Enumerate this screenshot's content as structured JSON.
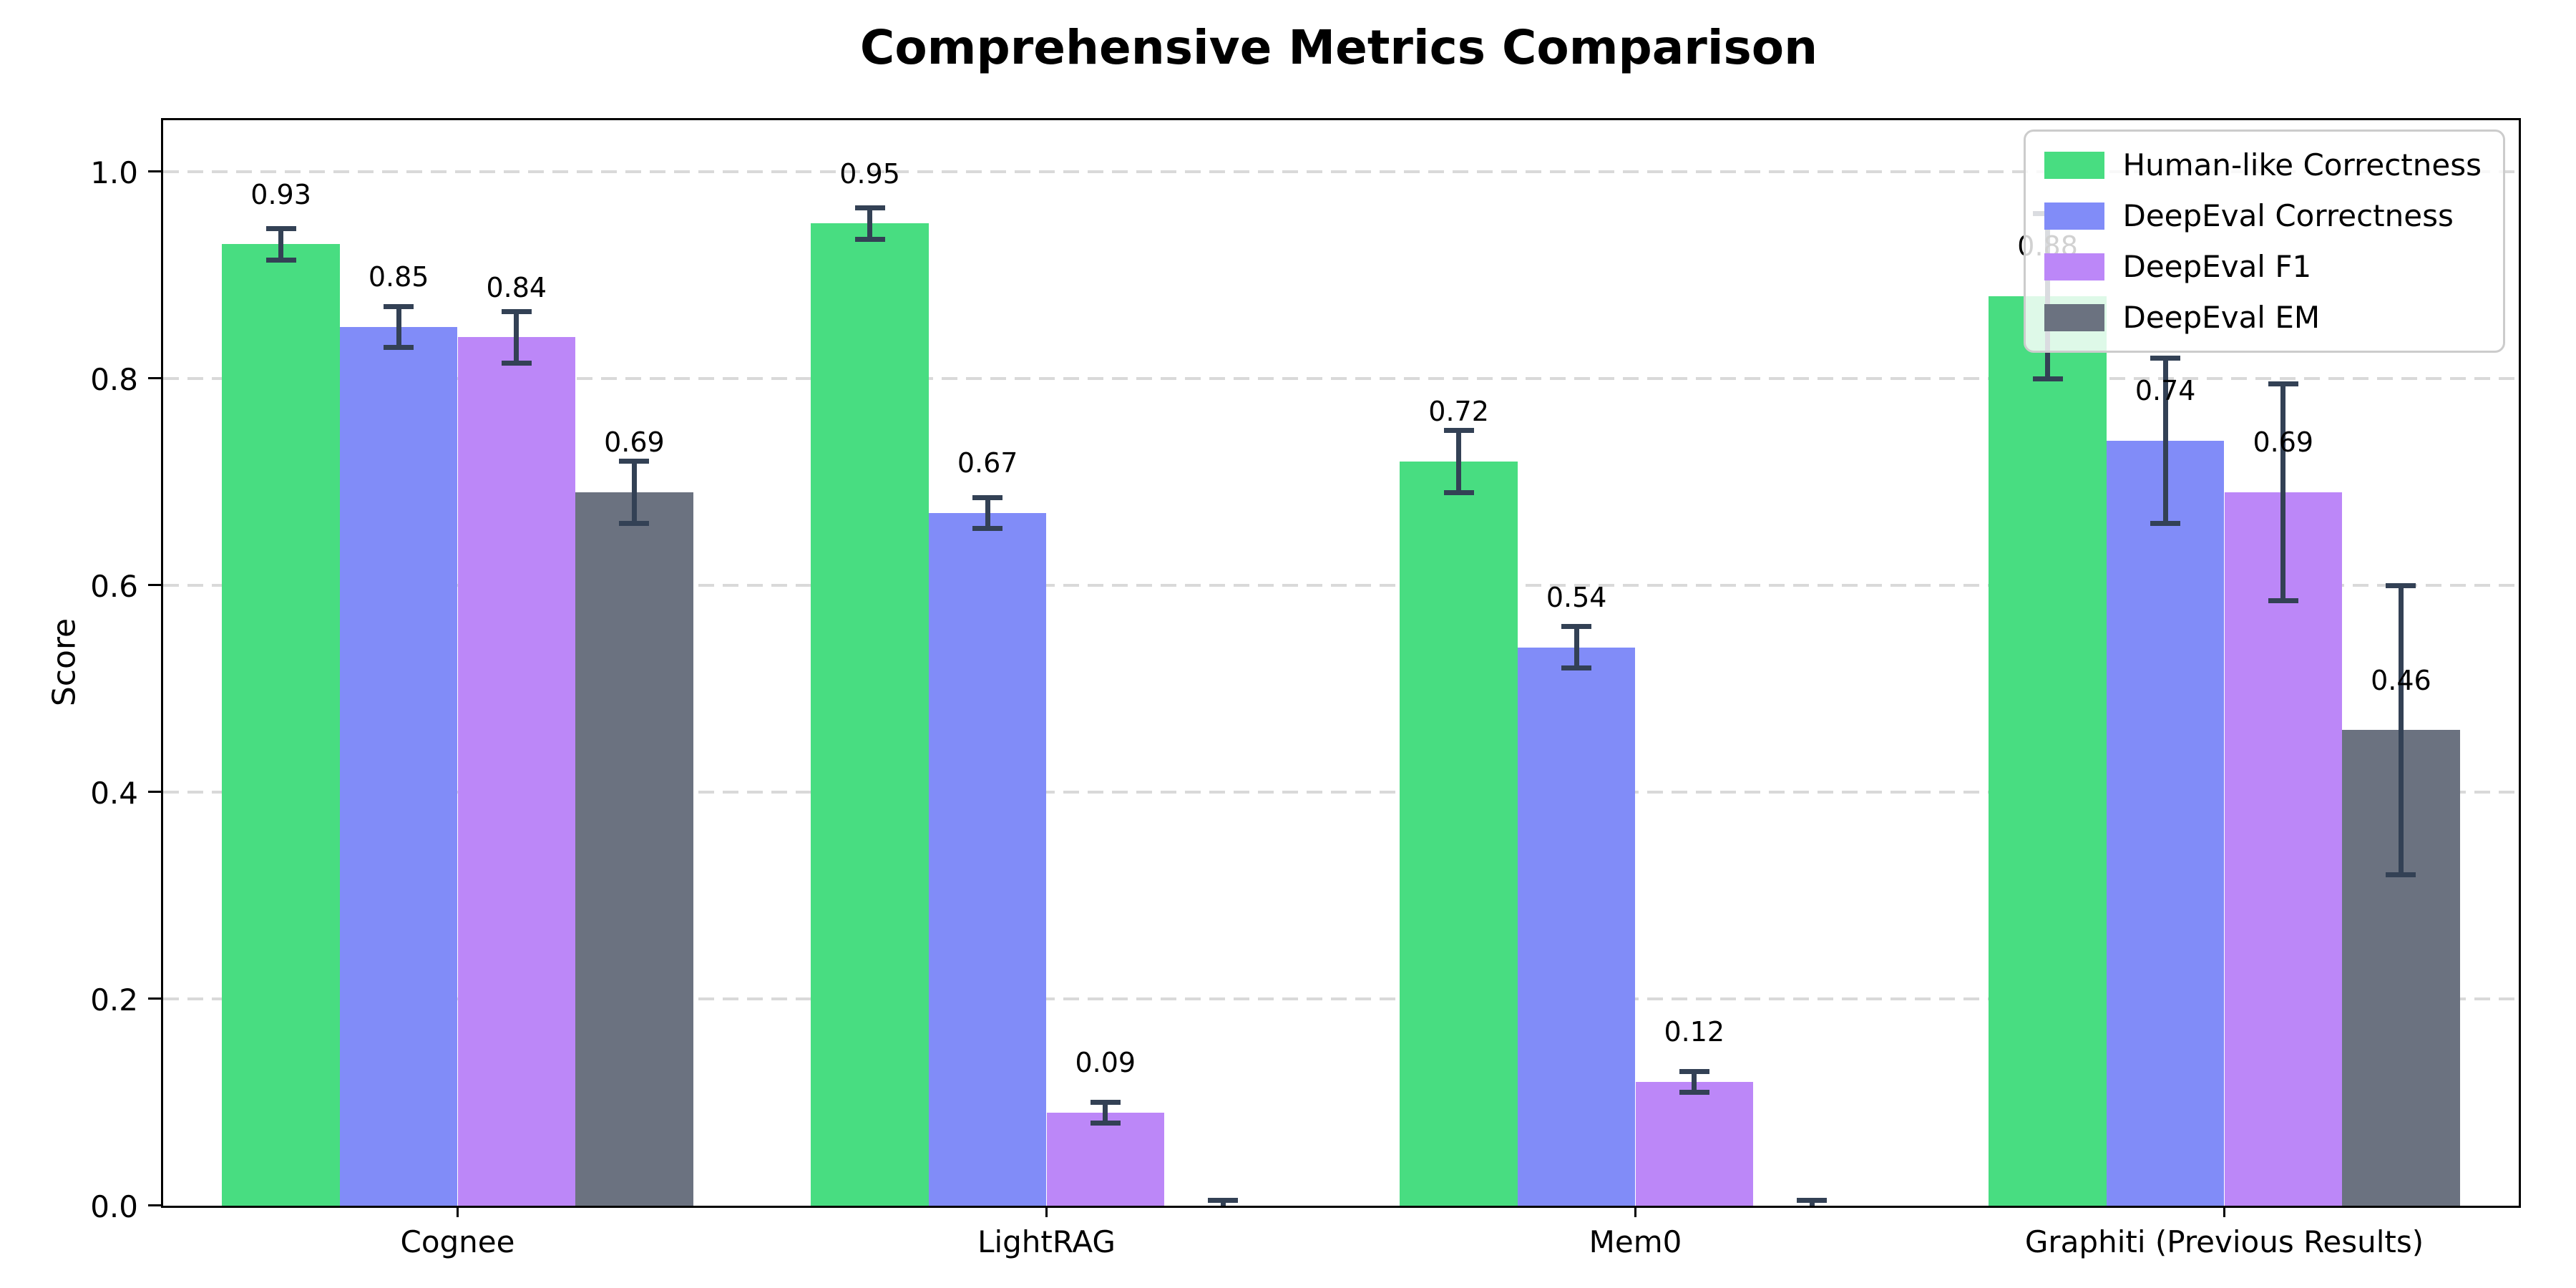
{
  "chart_data": {
    "type": "bar",
    "title": "Comprehensive Metrics Comparison",
    "ylabel": "Score",
    "categories": [
      "Cognee",
      "LightRAG",
      "Mem0",
      "Graphiti (Previous Results)"
    ],
    "series": [
      {
        "name": "Human-like Correctness",
        "color": "#48dd81",
        "values": [
          0.93,
          0.95,
          0.72,
          0.88
        ],
        "errors": [
          0.015,
          0.015,
          0.03,
          0.08
        ],
        "labels": [
          "0.93",
          "0.95",
          "0.72",
          "0.88"
        ]
      },
      {
        "name": "DeepEval Correctness",
        "color": "#818cf8",
        "values": [
          0.85,
          0.67,
          0.54,
          0.74
        ],
        "errors": [
          0.02,
          0.015,
          0.02,
          0.08
        ],
        "labels": [
          "0.85",
          "0.67",
          "0.54",
          "0.74"
        ]
      },
      {
        "name": "DeepEval F1",
        "color": "#bc87f8",
        "values": [
          0.84,
          0.09,
          0.12,
          0.69
        ],
        "errors": [
          0.025,
          0.01,
          0.01,
          0.105
        ],
        "labels": [
          "0.84",
          "0.09",
          "0.12",
          "0.69"
        ]
      },
      {
        "name": "DeepEval EM",
        "color": "#6b7280",
        "values": [
          0.69,
          0.0,
          0.0,
          0.46
        ],
        "errors": [
          0.03,
          0.005,
          0.005,
          0.14
        ],
        "labels": [
          "0.69",
          "",
          "",
          "0.46"
        ]
      }
    ],
    "yticks": [
      "0.0",
      "0.2",
      "0.4",
      "0.6",
      "0.8",
      "1.0"
    ],
    "ylim": [
      0,
      1.05
    ],
    "grid": "horizontal-dashed",
    "legend_position": "upper-right",
    "colors": {
      "error_bar": "#334155",
      "grid": "#d9d9d9",
      "axis": "#000000",
      "legend_border": "#cccccc",
      "background": "#ffffff"
    }
  }
}
